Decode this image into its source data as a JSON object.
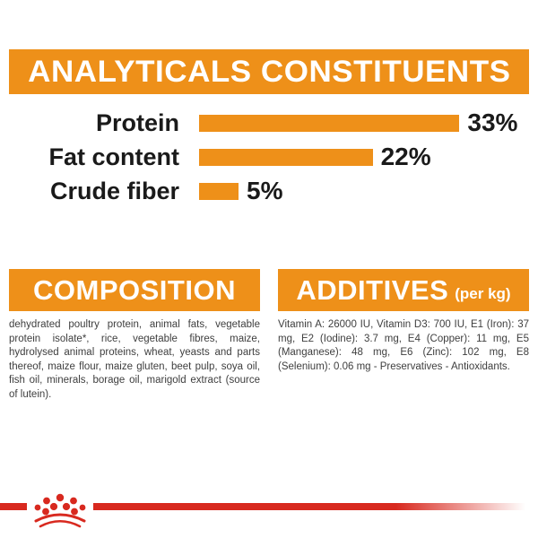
{
  "colors": {
    "orange": "#EE9019",
    "red": "#D8291F",
    "text_dark": "#1a1a1a",
    "body_text": "#3e3e3e"
  },
  "header": {
    "title": "ANALYTICALS CONSTITUENTS"
  },
  "chart_data": {
    "type": "bar",
    "orientation": "horizontal",
    "title": "ANALYTICALS CONSTITUENTS",
    "categories": [
      "Protein",
      "Fat content",
      "Crude fiber"
    ],
    "values": [
      33,
      22,
      5
    ],
    "value_labels": [
      "33%",
      "22%",
      "5%"
    ],
    "unit": "%",
    "xlim": [
      0,
      35
    ],
    "grid": false,
    "legend": false,
    "bar_color": "#EE9019",
    "label_color": "#1a1a1a"
  },
  "sections": {
    "composition": {
      "title": "COMPOSITION",
      "body": "dehydrated poultry protein, animal fats, vegetable protein isolate*, rice, vegetable fibres, maize, hydrolysed animal proteins, wheat, yeasts and parts thereof, maize flour, maize gluten, beet pulp, soya oil, fish oil, minerals, borage oil, marigold extract (source of lutein)."
    },
    "additives": {
      "title": "ADDITIVES",
      "title_suffix": "(per kg)",
      "body": "Vitamin A: 26000 IU, Vitamin D3: 700 IU, E1 (Iron): 37 mg, E2 (Iodine): 3.7 mg, E4 (Copper): 11 mg, E5 (Manganese): 48 mg, E6 (Zinc): 102 mg, E8 (Selenium): 0.06 mg - Preservatives - Antioxidants."
    }
  },
  "footer": {
    "logo_icon": "royal-canin-crown"
  }
}
